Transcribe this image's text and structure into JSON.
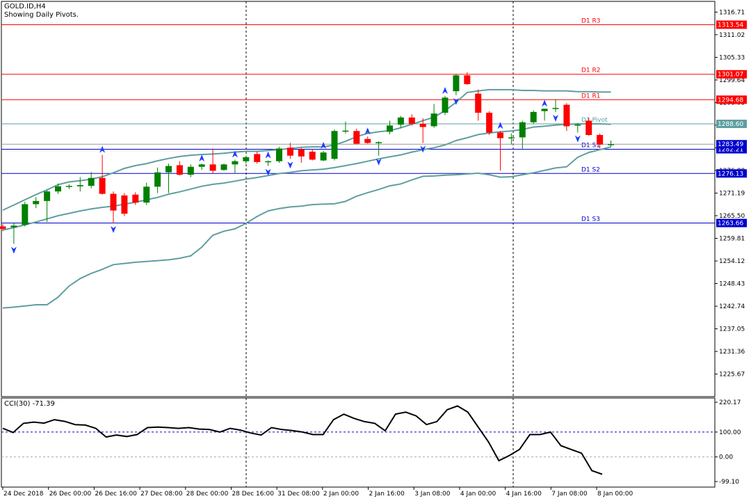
{
  "header": {
    "symbol": "GOLD.ID,H4",
    "subtitle": "Showing Daily Pivots."
  },
  "colors": {
    "bull": "#008000",
    "bear": "#ff0000",
    "envelope": "#5f9ea0",
    "resistance": "#ff0000",
    "support": "#0000cd",
    "pivot": "#5f9ea0",
    "fractal": "#1e3cff",
    "cci": "#000000"
  },
  "chart_data": [
    {
      "type": "candlestick",
      "title": "GOLD.ID,H4",
      "ylim": [
        1220.0,
        1319.4
      ],
      "price_axis_ticks": [
        "1316.71",
        "1311.02",
        "1305.33",
        "1299.64",
        "1293.95",
        "1288.26",
        "1282.57",
        "1276.88",
        "1271.19",
        "1265.50",
        "1259.81",
        "1254.12",
        "1248.43",
        "1242.74",
        "1237.05",
        "1231.36",
        "1225.67"
      ],
      "time_axis_labels": [
        "24 Dec 2018",
        "26 Dec 00:00",
        "26 Dec 16:00",
        "27 Dec 08:00",
        "28 Dec 00:00",
        "28 Dec 16:00",
        "31 Dec 08:00",
        "2 Jan 00:00",
        "2 Jan 16:00",
        "3 Jan 08:00",
        "4 Jan 00:00",
        "4 Jan 16:00",
        "7 Jan 08:00",
        "8 Jan 00:00"
      ],
      "pivots": [
        {
          "label": "D1 R3",
          "value": 1313.54,
          "value_text": "1313.54",
          "kind": "resistance"
        },
        {
          "label": "D1 R2",
          "value": 1301.07,
          "value_text": "1301.07",
          "kind": "resistance"
        },
        {
          "label": "D1 R1",
          "value": 1294.68,
          "value_text": "1294.68",
          "kind": "resistance"
        },
        {
          "label": "D1 Pivot",
          "value": 1288.6,
          "value_text": "1288.60",
          "kind": "pivot"
        },
        {
          "label": "D1 S1",
          "value": 1282.21,
          "value_text": "1282.21",
          "kind": "support"
        },
        {
          "label": "D1 S2",
          "value": 1276.13,
          "value_text": "1276.13",
          "kind": "support"
        },
        {
          "label": "D1 S3",
          "value": 1263.66,
          "value_text": "1263.66",
          "kind": "support"
        }
      ],
      "current_price": {
        "value": 1283.49,
        "value_text": "1283.49"
      },
      "candles": [
        {
          "o": 1262.8,
          "h": 1263.4,
          "l": 1261.6,
          "c": 1262.2
        },
        {
          "o": 1262.6,
          "h": 1263.6,
          "l": 1258.4,
          "c": 1263.0
        },
        {
          "o": 1263.2,
          "h": 1269.0,
          "l": 1262.8,
          "c": 1268.4
        },
        {
          "o": 1268.4,
          "h": 1270.2,
          "l": 1267.4,
          "c": 1269.2
        },
        {
          "o": 1269.2,
          "h": 1272.0,
          "l": 1263.9,
          "c": 1271.6
        },
        {
          "o": 1271.6,
          "h": 1273.6,
          "l": 1271.0,
          "c": 1272.9
        },
        {
          "o": 1272.8,
          "h": 1273.4,
          "l": 1272.2,
          "c": 1273.0
        },
        {
          "o": 1272.9,
          "h": 1275.2,
          "l": 1271.6,
          "c": 1273.2
        },
        {
          "o": 1273.0,
          "h": 1276.5,
          "l": 1272.4,
          "c": 1275.0
        },
        {
          "o": 1275.0,
          "h": 1280.8,
          "l": 1270.8,
          "c": 1271.0
        },
        {
          "o": 1271.0,
          "h": 1271.6,
          "l": 1263.6,
          "c": 1266.8
        },
        {
          "o": 1270.6,
          "h": 1271.2,
          "l": 1265.4,
          "c": 1266.0
        },
        {
          "o": 1270.8,
          "h": 1271.4,
          "l": 1268.2,
          "c": 1268.8
        },
        {
          "o": 1268.8,
          "h": 1273.8,
          "l": 1268.2,
          "c": 1272.8
        },
        {
          "o": 1272.8,
          "h": 1277.6,
          "l": 1271.2,
          "c": 1276.4
        },
        {
          "o": 1276.4,
          "h": 1278.6,
          "l": 1271.2,
          "c": 1278.0
        },
        {
          "o": 1278.2,
          "h": 1279.2,
          "l": 1275.6,
          "c": 1275.8
        },
        {
          "o": 1275.8,
          "h": 1278.4,
          "l": 1275.2,
          "c": 1277.8
        },
        {
          "o": 1277.8,
          "h": 1278.6,
          "l": 1277.0,
          "c": 1278.4
        },
        {
          "o": 1278.4,
          "h": 1282.4,
          "l": 1276.0,
          "c": 1276.8
        },
        {
          "o": 1277.0,
          "h": 1278.6,
          "l": 1276.8,
          "c": 1278.4
        },
        {
          "o": 1278.4,
          "h": 1279.6,
          "l": 1276.2,
          "c": 1279.2
        },
        {
          "o": 1279.2,
          "h": 1280.6,
          "l": 1278.6,
          "c": 1280.2
        },
        {
          "o": 1281.0,
          "h": 1281.6,
          "l": 1278.6,
          "c": 1279.0
        },
        {
          "o": 1279.0,
          "h": 1279.4,
          "l": 1278.0,
          "c": 1279.2
        },
        {
          "o": 1279.2,
          "h": 1282.8,
          "l": 1278.8,
          "c": 1282.4
        },
        {
          "o": 1282.6,
          "h": 1283.8,
          "l": 1279.8,
          "c": 1280.6
        },
        {
          "o": 1282.2,
          "h": 1282.6,
          "l": 1278.8,
          "c": 1280.4
        },
        {
          "o": 1281.6,
          "h": 1282.2,
          "l": 1279.4,
          "c": 1279.6
        },
        {
          "o": 1279.4,
          "h": 1281.8,
          "l": 1279.2,
          "c": 1281.4
        },
        {
          "o": 1279.8,
          "h": 1287.2,
          "l": 1279.4,
          "c": 1286.8
        },
        {
          "o": 1286.8,
          "h": 1289.2,
          "l": 1286.2,
          "c": 1286.9
        },
        {
          "o": 1286.8,
          "h": 1287.4,
          "l": 1283.4,
          "c": 1283.6
        },
        {
          "o": 1284.8,
          "h": 1285.4,
          "l": 1283.6,
          "c": 1283.8
        },
        {
          "o": 1283.9,
          "h": 1284.2,
          "l": 1280.6,
          "c": 1284.0
        },
        {
          "o": 1286.6,
          "h": 1289.4,
          "l": 1286.0,
          "c": 1288.2
        },
        {
          "o": 1288.4,
          "h": 1290.6,
          "l": 1287.6,
          "c": 1290.2
        },
        {
          "o": 1290.2,
          "h": 1291.0,
          "l": 1288.2,
          "c": 1288.6
        },
        {
          "o": 1288.6,
          "h": 1290.0,
          "l": 1283.8,
          "c": 1287.8
        },
        {
          "o": 1288.0,
          "h": 1293.6,
          "l": 1287.6,
          "c": 1291.2
        },
        {
          "o": 1291.4,
          "h": 1295.6,
          "l": 1290.8,
          "c": 1295.2
        },
        {
          "o": 1296.8,
          "h": 1301.2,
          "l": 1295.8,
          "c": 1300.8
        },
        {
          "o": 1300.8,
          "h": 1301.6,
          "l": 1298.4,
          "c": 1298.6
        },
        {
          "o": 1296.2,
          "h": 1297.2,
          "l": 1289.4,
          "c": 1291.4
        },
        {
          "o": 1291.4,
          "h": 1291.8,
          "l": 1285.8,
          "c": 1286.4
        },
        {
          "o": 1286.4,
          "h": 1286.8,
          "l": 1276.8,
          "c": 1285.0
        },
        {
          "o": 1285.0,
          "h": 1286.2,
          "l": 1283.4,
          "c": 1285.2
        },
        {
          "o": 1285.2,
          "h": 1289.4,
          "l": 1282.2,
          "c": 1289.0
        },
        {
          "o": 1289.0,
          "h": 1292.0,
          "l": 1288.6,
          "c": 1291.6
        },
        {
          "o": 1291.8,
          "h": 1292.4,
          "l": 1289.4,
          "c": 1292.4
        },
        {
          "o": 1292.4,
          "h": 1294.8,
          "l": 1291.6,
          "c": 1292.6
        },
        {
          "o": 1293.4,
          "h": 1293.8,
          "l": 1286.8,
          "c": 1288.0
        },
        {
          "o": 1288.2,
          "h": 1288.8,
          "l": 1286.4,
          "c": 1288.4
        },
        {
          "o": 1289.4,
          "h": 1290.2,
          "l": 1285.6,
          "c": 1285.8
        },
        {
          "o": 1285.8,
          "h": 1286.2,
          "l": 1282.4,
          "c": 1283.4
        },
        {
          "o": 1283.4,
          "h": 1284.4,
          "l": 1282.8,
          "c": 1283.5
        }
      ],
      "envelope_upper": [
        1266.9,
        1268.2,
        1269.5,
        1270.8,
        1272.0,
        1273.3,
        1274.0,
        1274.3,
        1274.7,
        1275.3,
        1276.3,
        1277.4,
        1278.1,
        1278.6,
        1279.3,
        1279.9,
        1280.4,
        1280.7,
        1280.9,
        1281.0,
        1281.2,
        1281.5,
        1281.7,
        1281.7,
        1281.9,
        1282.1,
        1282.4,
        1282.7,
        1282.8,
        1282.8,
        1283.3,
        1284.2,
        1285.4,
        1286.2,
        1286.6,
        1286.9,
        1287.6,
        1288.5,
        1289.4,
        1290.3,
        1291.9,
        1294.0,
        1296.5,
        1296.9,
        1297.2,
        1297.2,
        1297.2,
        1297.0,
        1297.0,
        1296.9,
        1296.9,
        1296.9,
        1296.7,
        1296.7,
        1296.6,
        1296.6
      ],
      "envelope_middle": [
        1261.9,
        1262.5,
        1263.2,
        1263.9,
        1264.7,
        1265.5,
        1266.1,
        1266.7,
        1267.2,
        1267.6,
        1267.9,
        1268.4,
        1268.9,
        1269.5,
        1270.1,
        1270.9,
        1271.5,
        1272.2,
        1272.9,
        1273.4,
        1273.7,
        1274.2,
        1274.7,
        1275.1,
        1275.6,
        1276.1,
        1276.4,
        1276.8,
        1277.0,
        1277.2,
        1277.6,
        1278.1,
        1278.6,
        1279.2,
        1279.8,
        1280.3,
        1280.8,
        1281.5,
        1282.1,
        1282.6,
        1283.3,
        1284.4,
        1285.1,
        1285.9,
        1286.3,
        1286.6,
        1286.8,
        1287.2,
        1287.8,
        1288.0,
        1288.3,
        1288.5,
        1288.6,
        1288.6,
        1288.6,
        1288.5
      ],
      "envelope_lower": [
        1242.3,
        1242.5,
        1242.8,
        1243.1,
        1243.1,
        1245.0,
        1247.8,
        1249.7,
        1251.0,
        1252.0,
        1253.2,
        1253.5,
        1253.8,
        1254.0,
        1254.2,
        1254.4,
        1254.8,
        1255.4,
        1257.6,
        1260.6,
        1261.6,
        1262.2,
        1263.6,
        1265.3,
        1266.7,
        1267.3,
        1267.7,
        1267.9,
        1268.3,
        1268.4,
        1268.5,
        1269.1,
        1270.4,
        1271.3,
        1272.1,
        1273.0,
        1273.5,
        1274.5,
        1275.4,
        1275.5,
        1275.7,
        1275.8,
        1276.0,
        1276.2,
        1275.8,
        1275.2,
        1275.3,
        1275.8,
        1276.3,
        1276.9,
        1277.5,
        1277.8,
        1280.2,
        1281.4,
        1282.1,
        1282.8
      ],
      "fractals_up": [
        9,
        18,
        21,
        24,
        29,
        33,
        40,
        45,
        49,
        57
      ],
      "fractals_down": [
        1,
        10,
        24,
        26,
        34,
        38,
        41,
        50,
        52,
        56
      ]
    },
    {
      "type": "line",
      "title": "CCI(30) -71.39",
      "ylim": [
        -99.1,
        220.17
      ],
      "axis_ticks": [
        "220.17",
        "100.00",
        "0.00",
        "-99.10"
      ],
      "levels": [
        100,
        0
      ],
      "series": [
        {
          "name": "CCI(30)",
          "values": [
            115,
            98,
            135,
            140,
            136,
            150,
            143,
            130,
            128,
            115,
            80,
            88,
            82,
            90,
            118,
            120,
            118,
            115,
            118,
            112,
            110,
            100,
            115,
            108,
            96,
            88,
            118,
            110,
            106,
            100,
            90,
            90,
            150,
            172,
            155,
            142,
            135,
            105,
            172,
            180,
            165,
            130,
            142,
            190,
            205,
            180,
            120,
            60,
            -15,
            5,
            30,
            90,
            90,
            100,
            45,
            30,
            15,
            -55,
            -70
          ]
        }
      ]
    }
  ]
}
